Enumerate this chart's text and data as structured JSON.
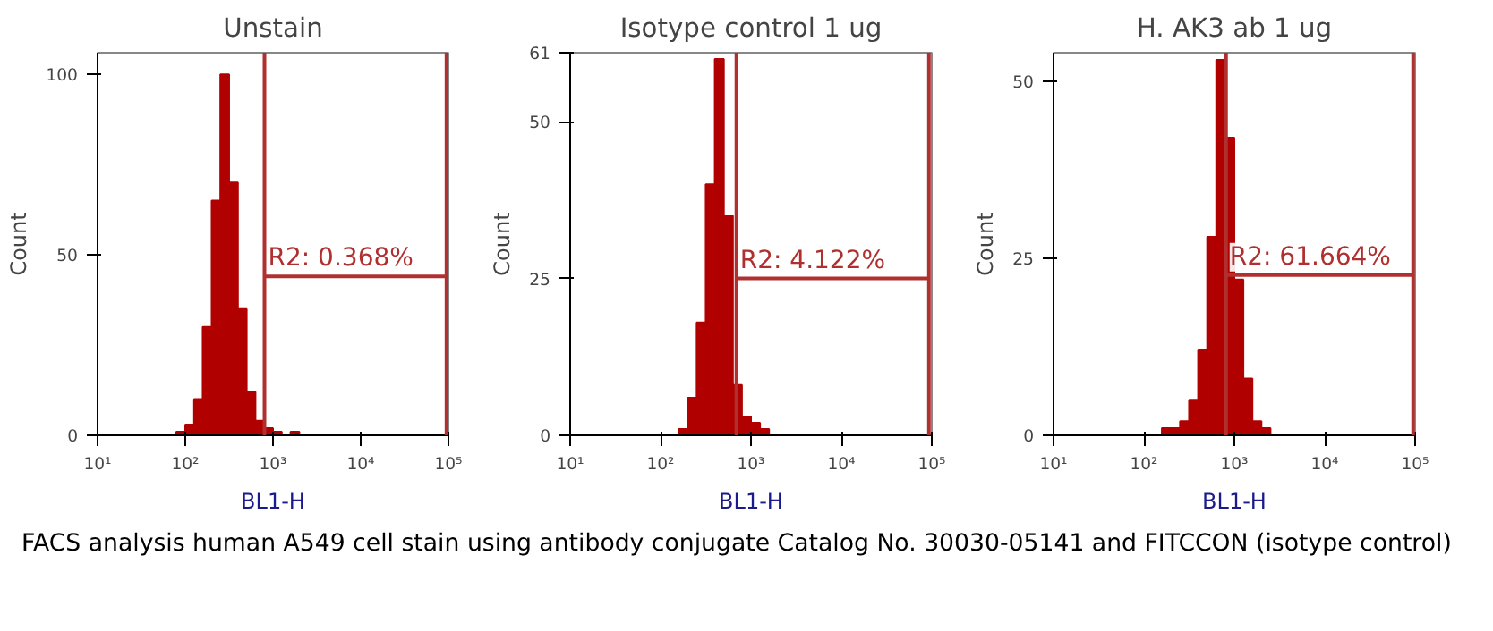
{
  "chart_data": [
    {
      "type": "histogram",
      "title": "Unstain",
      "xlabel": "BL1-H",
      "ylabel": "Count",
      "log": "x",
      "color": "#b00000",
      "bins": [
        63,
        79,
        100,
        126,
        158,
        200,
        251,
        316,
        398,
        501,
        631,
        794,
        1000,
        1259,
        1585,
        1995
      ],
      "values": [
        0,
        1,
        3,
        10,
        30,
        65,
        100,
        70,
        35,
        12,
        4,
        2,
        1,
        0,
        1
      ],
      "series": [
        {
          "type": "line",
          "color": "#b03030",
          "x": [
            800,
            95000
          ],
          "values": [
            44,
            44
          ]
        }
      ],
      "ref_lines": [
        {
          "axis": "x",
          "value": 800,
          "color": "#b03030"
        },
        {
          "axis": "x",
          "value": 95000,
          "color": "#b03030"
        }
      ],
      "annotations": [
        {
          "text": "R2: 0.368%",
          "x": 800,
          "y": 44
        },
        "FACS analysis human A549 cell stain using antibody conjugate Catalog No. 30030-05141 and FITCCON (isotype control)"
      ],
      "xlim": [
        10,
        100000
      ],
      "ylim": [
        0,
        106
      ],
      "xticks": [
        {
          "value": 10,
          "label": "10¹"
        },
        {
          "value": 100,
          "label": "10²"
        },
        {
          "value": 1000,
          "label": "10³"
        },
        {
          "value": 10000,
          "label": "10⁴"
        },
        {
          "value": 100000,
          "label": "10⁵"
        }
      ],
      "yticks": [
        0,
        50,
        100
      ],
      "grid": false
    },
    {
      "type": "histogram",
      "title": "Isotype control 1 ug",
      "xlabel": "BL1-H",
      "ylabel": "Count",
      "log": "x",
      "color": "#b00000",
      "bins": [
        158,
        200,
        251,
        316,
        398,
        501,
        631,
        794,
        1000,
        1259,
        1585
      ],
      "values": [
        1,
        6,
        18,
        40,
        60,
        35,
        8,
        3,
        2,
        1
      ],
      "series": [
        {
          "type": "line",
          "color": "#b03030",
          "x": [
            690,
            93000
          ],
          "values": [
            25,
            25
          ]
        }
      ],
      "ref_lines": [
        {
          "axis": "x",
          "value": 690,
          "color": "#b03030"
        },
        {
          "axis": "x",
          "value": 93000,
          "color": "#b03030"
        }
      ],
      "annotations": [
        {
          "text": "R2: 4.122%",
          "x": 690,
          "y": 25
        }
      ],
      "xlim": [
        10,
        100000
      ],
      "ylim": [
        0,
        61
      ],
      "xticks": [
        {
          "value": 10,
          "label": "10¹"
        },
        {
          "value": 100,
          "label": "10²"
        },
        {
          "value": 1000,
          "label": "10³"
        },
        {
          "value": 10000,
          "label": "10⁴"
        },
        {
          "value": 100000,
          "label": "10⁵"
        }
      ],
      "yticks": [
        0,
        25,
        50,
        61
      ],
      "grid": false
    },
    {
      "type": "histogram",
      "title": "H. AK3 ab 1 ug",
      "xlabel": "BL1-H",
      "ylabel": "Count",
      "log": "x",
      "color": "#b00000",
      "bins": [
        158,
        200,
        251,
        316,
        398,
        501,
        631,
        794,
        1000,
        1259,
        1585,
        1995,
        2512
      ],
      "values": [
        1,
        1,
        2,
        5,
        12,
        28,
        53,
        42,
        22,
        8,
        2,
        1
      ],
      "series": [
        {
          "type": "line",
          "color": "#b03030",
          "x": [
            810,
            95000
          ],
          "values": [
            22.6,
            22.6
          ]
        }
      ],
      "ref_lines": [
        {
          "axis": "x",
          "value": 810,
          "color": "#b03030"
        },
        {
          "axis": "x",
          "value": 95000,
          "color": "#b03030"
        }
      ],
      "annotations": [
        {
          "text": "R2: 61.664%",
          "x": 810,
          "y": 22.6
        }
      ],
      "xlim": [
        10,
        100000
      ],
      "ylim": [
        0,
        54
      ],
      "xticks": [
        {
          "value": 10,
          "label": "10¹"
        },
        {
          "value": 100,
          "label": "10²"
        },
        {
          "value": 1000,
          "label": "10³"
        },
        {
          "value": 10000,
          "label": "10⁴"
        },
        {
          "value": 100000,
          "label": "10⁵"
        }
      ],
      "yticks": [
        0,
        25,
        50
      ],
      "grid": false
    }
  ]
}
